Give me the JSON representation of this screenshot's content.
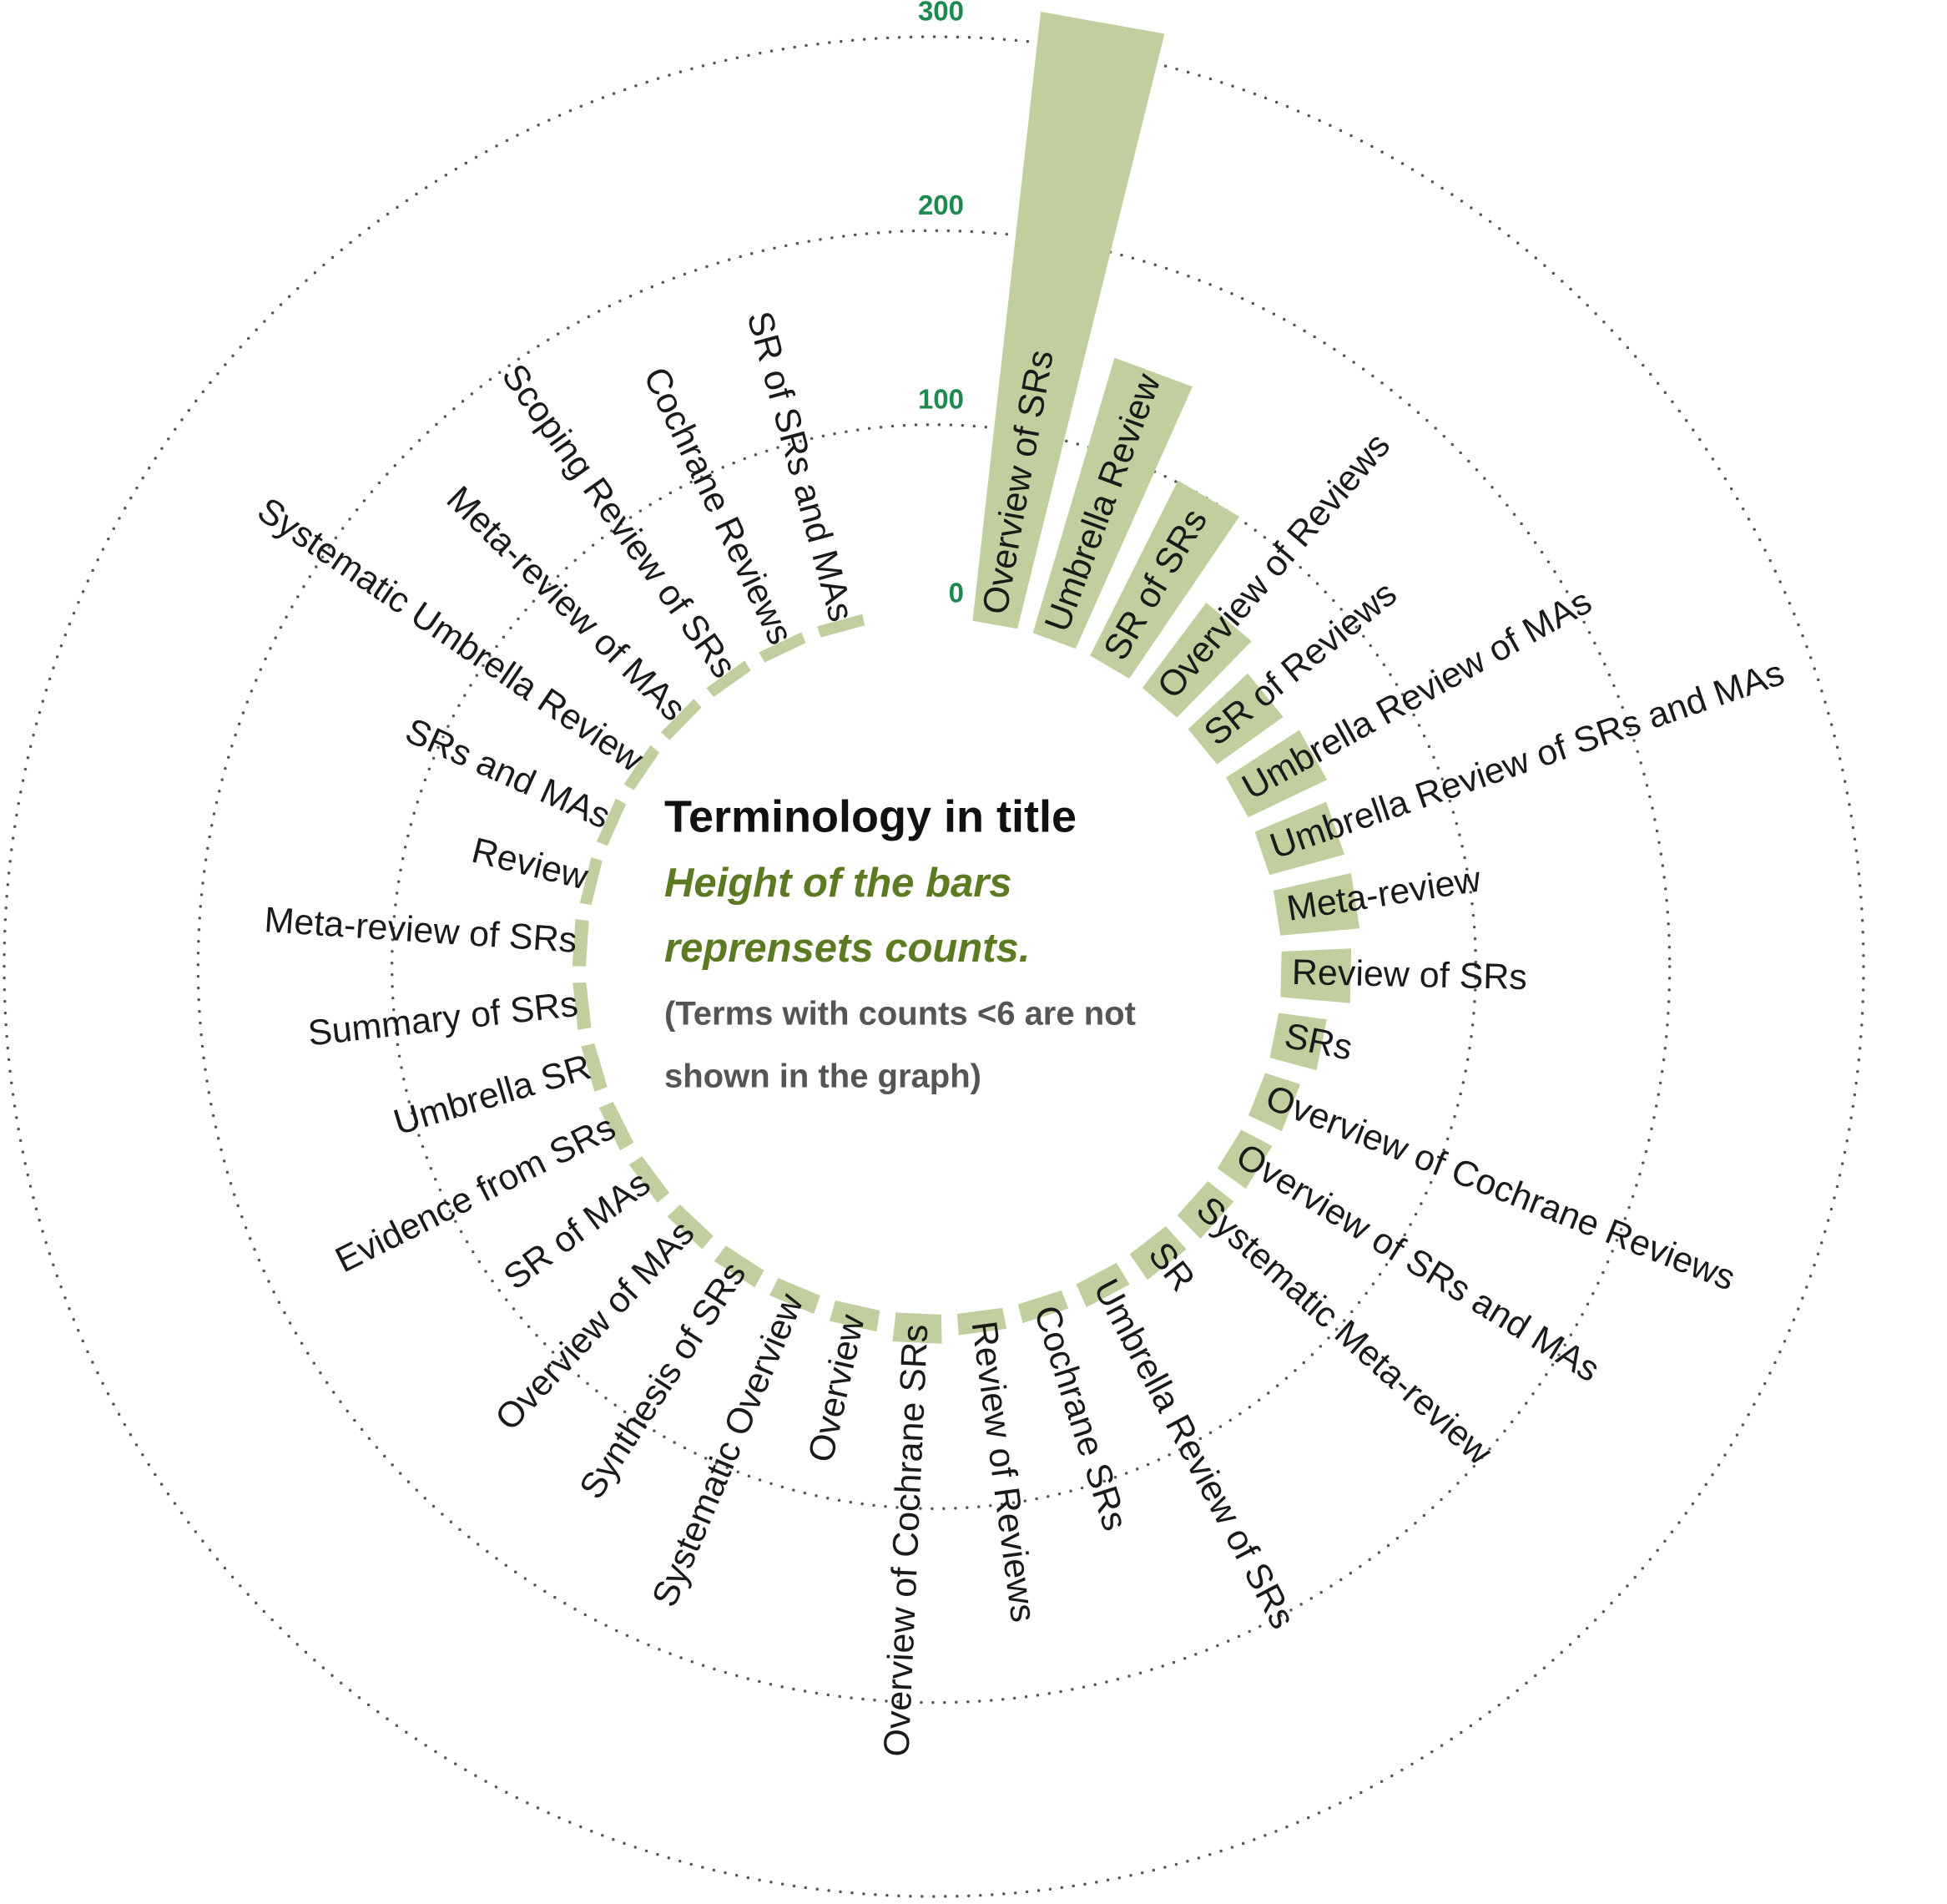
{
  "chart_data": {
    "type": "radial_bar",
    "title": "Terminology in title",
    "subtitle": [
      "Height of the bars",
      "reprensets counts."
    ],
    "note": [
      "(Terms with counts <6 are not",
      "shown in the graph)"
    ],
    "categories": [
      "Overview of SRs",
      "Umbrella Review",
      "SR of SRs",
      "Overview of Reviews",
      "SR of Reviews",
      "Umbrella Review of MAs",
      "Umbrella Review of SRs and MAs",
      "Meta-review",
      "Review of SRs",
      "SRs",
      "Overview of Cochrane Reviews",
      "Overview of SRs and MAs",
      "Systematic Meta-review",
      "SR",
      "Umbrella Review of SRs",
      "Cochrane SRs",
      "Review of Reviews",
      "Overview of Cochrane SRs",
      "Overview",
      "Systematic Overview",
      "Synthesis of SRs",
      "Overview of MAs",
      "SR of MAs",
      "Evidence from SRs",
      "Umbrella SR",
      "Summary of SRs",
      "Meta-review of SRs",
      "Review",
      "SRs and MAs",
      "Systematic Umbrella Review",
      "Meta-review of MAs",
      "Scoping Review of SRs",
      "Cochrane Reviews",
      "SR of SRs and MAs"
    ],
    "values": [
      316,
      148,
      101,
      55,
      42,
      45,
      40,
      41,
      36,
      25,
      19,
      18,
      17,
      16,
      13,
      10,
      11,
      15,
      11,
      10,
      10,
      9,
      8,
      8,
      7,
      7,
      7,
      6,
      6,
      6,
      6,
      6,
      6,
      6
    ],
    "color": "#c0cf9d",
    "ylim": [
      0,
      300
    ],
    "yticks": [
      0,
      100,
      200,
      300
    ],
    "grid": true
  }
}
